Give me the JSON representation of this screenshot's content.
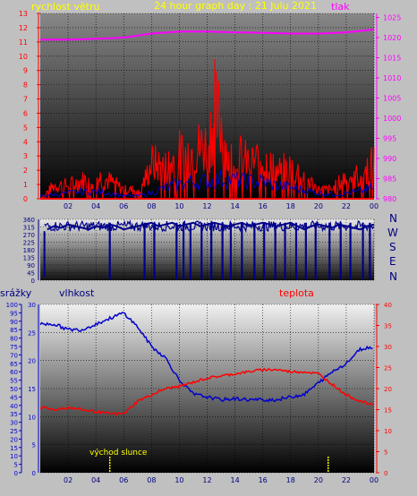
{
  "header": {
    "left_label": "rychlost větru",
    "title": "24 hour graph day : 21 Julu 2021",
    "right_label": "tlak",
    "left_label_color": "#ffff00",
    "right_label_color": "#ff00ff"
  },
  "wind_dir_labels": [
    "N",
    "W",
    "S",
    "E",
    "N"
  ],
  "lower_labels": {
    "left": "srážky",
    "center_left": "vlhkost",
    "right": "teplota",
    "annotation": "východ slunce"
  },
  "colors": {
    "speed": "#ff0000",
    "gust": "#ff0000",
    "avg": "#0000cc",
    "pressure": "#ff00ff",
    "direction": "#00008b",
    "humidity": "#0000cc",
    "temperature": "#ff0000",
    "sunrise": "#ffff00",
    "left_axis_top": "#ff0000",
    "right_axis_top": "#ff00ff",
    "dir_axis": "#00008b",
    "rain_axis": "#0000cc",
    "temp_axis": "#ff0000"
  },
  "chart_data": [
    {
      "type": "line",
      "name": "wind-pressure",
      "x_ticks": [
        "02",
        "04",
        "06",
        "08",
        "10",
        "12",
        "14",
        "16",
        "18",
        "20",
        "22",
        "00"
      ],
      "left_axis": {
        "ylim": [
          0,
          13
        ],
        "ticks": [
          0,
          1,
          2,
          3,
          4,
          5,
          6,
          7,
          8,
          9,
          10,
          11,
          12,
          13
        ]
      },
      "right_axis": {
        "ylim": [
          980,
          1026
        ],
        "ticks": [
          980,
          985,
          990,
          995,
          1000,
          1005,
          1010,
          1015,
          1020,
          1025
        ]
      },
      "series": [
        {
          "axis": "right",
          "x": [
            0,
            2,
            4,
            6,
            8,
            10,
            12,
            14,
            16,
            18,
            20,
            22,
            24
          ],
          "values": [
            1019.5,
            1019.5,
            1019.7,
            1020,
            1021,
            1021.5,
            1021.5,
            1021.3,
            1021.2,
            1021,
            1021,
            1021.3,
            1022
          ]
        },
        {
          "axis": "left",
          "x": [
            0,
            1,
            2,
            3,
            4,
            5,
            6,
            7,
            7.5,
            8,
            9,
            10,
            10.5,
            11,
            12,
            12.5,
            13,
            13.5,
            14,
            15,
            16,
            17,
            18,
            19,
            20,
            21,
            22,
            23,
            24
          ],
          "values": [
            0,
            1.5,
            1.5,
            2,
            2.5,
            2,
            1,
            1,
            2,
            4,
            3.5,
            5,
            5,
            5.5,
            6,
            9.5,
            8.5,
            4.5,
            5,
            4,
            4.5,
            3,
            3.5,
            2.5,
            1,
            1,
            2.5,
            2.5,
            4
          ]
        },
        {
          "axis": "left",
          "x": [
            0,
            1,
            2,
            3,
            4,
            5,
            6,
            7,
            8,
            9,
            10,
            11,
            12,
            13,
            14,
            15,
            16,
            17,
            18,
            19,
            20,
            21,
            22,
            23,
            24
          ],
          "values": [
            0.2,
            0.3,
            0.4,
            0.5,
            0.5,
            0.4,
            0.2,
            0.2,
            0.4,
            0.8,
            1.0,
            1.2,
            1.2,
            1.4,
            1.3,
            1.2,
            1.2,
            0.9,
            0.8,
            0.6,
            0.4,
            0.3,
            0.4,
            0.5,
            0.8
          ]
        }
      ]
    },
    {
      "type": "scatter",
      "name": "wind-direction",
      "y_ticks": [
        0,
        45,
        90,
        135,
        180,
        225,
        270,
        315,
        360
      ],
      "ylim": [
        0,
        360
      ],
      "x": [
        0.5,
        1,
        1.5,
        2,
        2.5,
        3,
        3.5,
        4,
        4.5,
        5,
        5.5,
        6,
        6.5,
        7,
        7.5,
        8,
        8.5,
        9,
        9.5,
        10,
        10.5,
        11,
        11.5,
        12,
        12.5,
        13,
        13.5,
        14,
        14.5,
        15,
        15.5,
        16,
        16.5,
        17,
        17.5,
        18,
        18.5,
        19,
        19.5,
        20,
        20.5,
        21,
        21.5,
        22,
        22.5,
        23,
        23.5,
        24
      ],
      "values": [
        300,
        320,
        310,
        330,
        320,
        310,
        300,
        320,
        310,
        330,
        320,
        300,
        310,
        320,
        330,
        340,
        320,
        330,
        340,
        320,
        330,
        340,
        320,
        330,
        340,
        330,
        320,
        330,
        340,
        320,
        330,
        340,
        330,
        320,
        330,
        340,
        320,
        300,
        320,
        330,
        320,
        310,
        330,
        320,
        310,
        300,
        320,
        330
      ],
      "drops_to_zero_at": [
        5,
        7.5,
        8.2,
        9.8,
        10.3,
        10.8,
        11.6,
        12.3,
        13.1,
        13.7,
        14.5,
        15.4,
        16.1,
        16.9,
        17.6,
        18.4,
        19.1,
        19.8,
        20.8,
        21.6,
        22.3,
        23.2,
        23.7
      ]
    },
    {
      "type": "line",
      "name": "humidity-temperature",
      "x_ticks": [
        "02",
        "04",
        "06",
        "08",
        "10",
        "12",
        "14",
        "16",
        "18",
        "20",
        "22",
        "00"
      ],
      "left_axis_rain": {
        "ylim": [
          0,
          100
        ],
        "ticks": [
          0,
          5,
          10,
          15,
          20,
          25,
          30,
          35,
          40,
          45,
          50,
          55,
          60,
          65,
          70,
          75,
          80,
          85,
          90,
          95,
          100
        ]
      },
      "left_axis_humidity": {
        "ylim": [
          0,
          30
        ],
        "ticks": [
          0,
          5,
          10,
          15,
          20,
          25,
          30
        ]
      },
      "right_axis": {
        "ylim": [
          0,
          40
        ],
        "ticks": [
          0,
          5,
          10,
          15,
          20,
          25,
          30,
          35,
          40
        ]
      },
      "series": [
        {
          "axis": "humidity",
          "x": [
            0,
            1,
            2,
            3,
            4,
            5,
            6,
            7,
            8,
            9,
            10,
            11,
            12,
            13,
            14,
            15,
            16,
            17,
            18,
            19,
            20,
            21,
            22,
            23,
            24
          ],
          "values": [
            26.5,
            26.5,
            25.5,
            25.5,
            26.5,
            27.5,
            28.5,
            26,
            22.5,
            20.5,
            16.5,
            14,
            13.5,
            13,
            13.2,
            13,
            13,
            13,
            13.5,
            14,
            16,
            18,
            19.5,
            22,
            22.5
          ]
        },
        {
          "axis": "temperature",
          "x": [
            0,
            1,
            2,
            3,
            4,
            5,
            6,
            7,
            8,
            9,
            10,
            11,
            12,
            13,
            14,
            15,
            16,
            17,
            18,
            19,
            20,
            21,
            22,
            23,
            24
          ],
          "values": [
            15.5,
            15,
            15.5,
            15,
            14.5,
            14,
            14,
            17,
            18.5,
            20,
            20.5,
            21.5,
            22.5,
            23,
            23.5,
            24,
            24.5,
            24.5,
            24,
            24,
            23.5,
            21,
            18.5,
            17,
            16
          ]
        }
      ],
      "sunrise_markers_x": [
        5,
        20.7
      ]
    }
  ]
}
